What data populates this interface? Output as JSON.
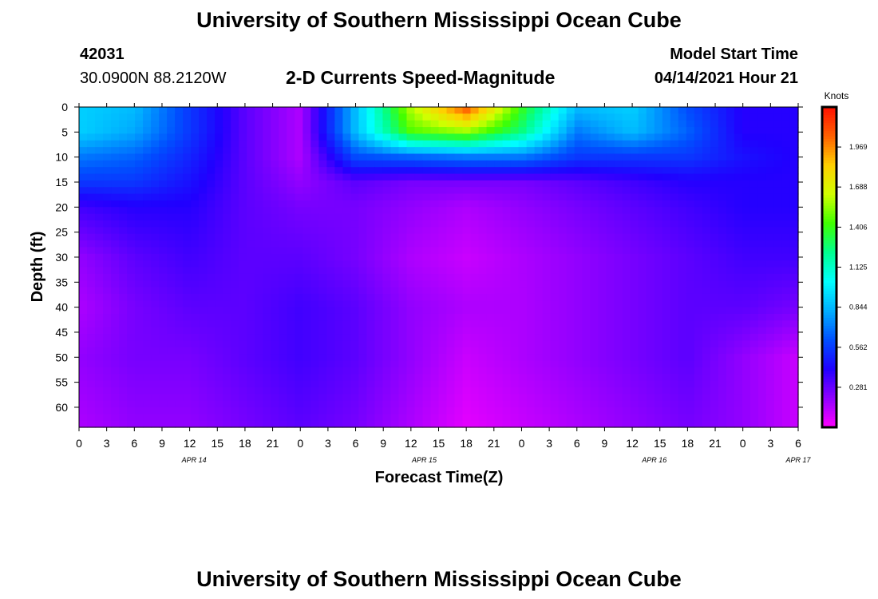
{
  "header": {
    "title_top": "University of Southern Mississippi Ocean Cube",
    "title_bottom": "University of Southern Mississippi Ocean Cube",
    "station_id": "42031",
    "coordinates": "30.0900N  88.2120W",
    "plot_title": "2-D Currents Speed-Magnitude",
    "model_start_label": "Model Start Time",
    "model_start_value": "04/14/2021 Hour 21"
  },
  "chart_data": {
    "type": "heatmap",
    "title": "2-D Currents Speed-Magnitude",
    "xlabel": "Forecast Time(Z)",
    "ylabel": "Depth (ft)",
    "x_ticks": [
      "0",
      "3",
      "6",
      "9",
      "12",
      "15",
      "18",
      "21",
      "0",
      "3",
      "6",
      "9",
      "12",
      "15",
      "18",
      "21",
      "0",
      "3",
      "6",
      "9",
      "12",
      "15",
      "18",
      "21",
      "0",
      "3",
      "6"
    ],
    "date_labels": [
      {
        "label": "APR 14",
        "hour": 16
      },
      {
        "label": "APR 15",
        "hour": 48
      },
      {
        "label": "APR 16",
        "hour": 80
      },
      {
        "label": "APR 17",
        "hour": 100
      }
    ],
    "x_range_hours": [
      0,
      78
    ],
    "y_ticks": [
      0,
      5,
      10,
      15,
      20,
      25,
      30,
      35,
      40,
      45,
      50,
      55,
      60
    ],
    "ylim": [
      0,
      64
    ],
    "y_inverted": true,
    "colorbar": {
      "label": "Knots",
      "ticks": [
        "1.969",
        "1.688",
        "1.406",
        "1.125",
        "0.844",
        "0.562",
        "0.281"
      ],
      "tick_values": [
        1.969,
        1.688,
        1.406,
        1.125,
        0.844,
        0.562,
        0.281
      ],
      "range": [
        0,
        2.25
      ],
      "colors": [
        "#ff00ff",
        "#9000ff",
        "#2000ff",
        "#0050ff",
        "#00b0ff",
        "#00ffff",
        "#00ff90",
        "#40ff00",
        "#d0ff00",
        "#ffd000",
        "#ff6000",
        "#ff1000"
      ]
    },
    "grid": {
      "hours": [
        0,
        6,
        12,
        18,
        24,
        30,
        36,
        42,
        48,
        54,
        60,
        66,
        72,
        78
      ],
      "depths": [
        0,
        5,
        10,
        15,
        20,
        30,
        40,
        50,
        64
      ],
      "values": [
        [
          0.9,
          0.85,
          0.55,
          0.3,
          0.15,
          0.85,
          1.6,
          2.1,
          1.4,
          0.85,
          0.9,
          0.6,
          0.4,
          0.4
        ],
        [
          0.9,
          0.8,
          0.55,
          0.3,
          0.15,
          0.85,
          1.45,
          1.55,
          1.25,
          0.7,
          0.85,
          0.65,
          0.4,
          0.4
        ],
        [
          0.7,
          0.65,
          0.5,
          0.3,
          0.15,
          0.6,
          0.65,
          0.7,
          0.7,
          0.55,
          0.55,
          0.55,
          0.45,
          0.4
        ],
        [
          0.55,
          0.55,
          0.45,
          0.3,
          0.2,
          0.3,
          0.25,
          0.25,
          0.25,
          0.3,
          0.35,
          0.4,
          0.4,
          0.4
        ],
        [
          0.35,
          0.4,
          0.4,
          0.3,
          0.25,
          0.25,
          0.2,
          0.15,
          0.2,
          0.25,
          0.3,
          0.35,
          0.4,
          0.4
        ],
        [
          0.2,
          0.3,
          0.35,
          0.3,
          0.3,
          0.25,
          0.15,
          0.1,
          0.15,
          0.2,
          0.25,
          0.3,
          0.35,
          0.35
        ],
        [
          0.15,
          0.25,
          0.3,
          0.3,
          0.35,
          0.3,
          0.2,
          0.15,
          0.15,
          0.2,
          0.25,
          0.3,
          0.3,
          0.25
        ],
        [
          0.2,
          0.25,
          0.25,
          0.3,
          0.35,
          0.3,
          0.2,
          0.1,
          0.15,
          0.2,
          0.25,
          0.3,
          0.2,
          0.1
        ],
        [
          0.15,
          0.2,
          0.2,
          0.25,
          0.3,
          0.25,
          0.15,
          0.05,
          0.1,
          0.15,
          0.2,
          0.25,
          0.2,
          0.1
        ]
      ]
    }
  }
}
